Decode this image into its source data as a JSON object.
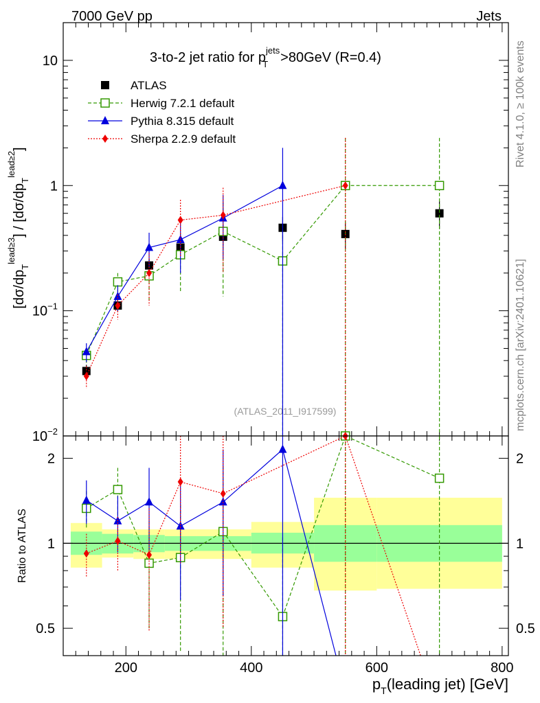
{
  "header": {
    "left": "7000 GeV pp",
    "right": "Jets"
  },
  "side_labels": {
    "rivet": "Rivet 4.1.0, ≥ 100k events",
    "mcplots": "mcplots.cern.ch [arXiv:2401.10621]"
  },
  "colors": {
    "atlas": "#000000",
    "herwig": "#339900",
    "pythia": "#0000dd",
    "sherpa": "#ee0000",
    "band_outer": "#ffff99",
    "band_inner": "#99ff99",
    "ref_label": "#999999"
  },
  "chart_data": [
    {
      "type": "scatter",
      "panel": "main",
      "title_text": "3-to-2 jet ratio for p",
      "title_sup": "jets",
      "title_sub": "T",
      "title_tail": ">80GeV (R=0.4)",
      "ylabel": "[dσ/dp_T^{lead≥3}] / [dσ/dp_T^{lead≥2}]",
      "yscale": "log",
      "ylim": [
        0.01,
        20
      ],
      "xlim": [
        100,
        810
      ],
      "y_ticks": [
        {
          "base": "10",
          "exp": "",
          "value": 10
        },
        {
          "base": "1",
          "exp": "",
          "value": 1
        },
        {
          "base": "10",
          "exp": "−1",
          "value": 0.1
        },
        {
          "base": "10",
          "exp": "−2",
          "value": 0.01
        }
      ],
      "ref_label": "(ATLAS_2011_I917599)",
      "legend_position": "top-left",
      "series": [
        {
          "name": "ATLAS",
          "marker": "square",
          "x": [
            137,
            187,
            237,
            287,
            355,
            450,
            550,
            700
          ],
          "y": [
            0.033,
            0.11,
            0.23,
            0.32,
            0.39,
            0.46,
            0.41,
            0.6
          ],
          "err": [
            0.004,
            0.012,
            0.03,
            0.04,
            0.06,
            0.1,
            0.1,
            0.15
          ]
        },
        {
          "name": "Herwig 7.2.1 default",
          "marker": "open-square",
          "x": [
            137,
            187,
            237,
            287,
            355,
            450,
            550,
            700
          ],
          "y": [
            0.044,
            0.17,
            0.19,
            0.28,
            0.43,
            0.25,
            1.0,
            1.0
          ],
          "err_lo": [
            0.006,
            0.03,
            0.07,
            0.14,
            0.3,
            0.24,
            0.99,
            0.99
          ],
          "err_hi": [
            0.006,
            0.03,
            0.07,
            0.14,
            0.3,
            0.24,
            1.4,
            1.4
          ]
        },
        {
          "name": "Pythia 8.315 default",
          "marker": "triangle",
          "x": [
            137,
            187,
            237,
            287,
            355,
            450
          ],
          "y": [
            0.047,
            0.13,
            0.32,
            0.37,
            0.55,
            1.0
          ],
          "err_lo": [
            0.008,
            0.03,
            0.1,
            0.17,
            0.29,
            0.999
          ],
          "err_hi": [
            0.008,
            0.03,
            0.1,
            0.17,
            0.29,
            1.0
          ]
        },
        {
          "name": "Sherpa 2.2.9 default",
          "marker": "diamond",
          "x": [
            137,
            187,
            237,
            287,
            355,
            550
          ],
          "y": [
            0.03,
            0.11,
            0.2,
            0.53,
            0.58,
            1.0
          ],
          "err_lo": [
            0.006,
            0.025,
            0.09,
            0.26,
            0.38,
            0.99
          ],
          "err_hi": [
            0.006,
            0.025,
            0.09,
            0.24,
            0.38,
            1.4
          ]
        }
      ]
    },
    {
      "type": "scatter",
      "panel": "ratio",
      "xlabel": "p_T(leading jet) [GeV]",
      "ylabel": "Ratio to ATLAS",
      "yscale": "log",
      "ylim": [
        0.4,
        2.4
      ],
      "xlim": [
        100,
        810
      ],
      "x_ticks": [
        "200",
        "400",
        "600",
        "800"
      ],
      "y_ticks": [
        "2",
        "1",
        "0.5"
      ],
      "bands": [
        {
          "x0": 112,
          "x1": 162,
          "inner_lo": 0.91,
          "inner_hi": 1.1,
          "outer_lo": 0.82,
          "outer_hi": 1.18
        },
        {
          "x0": 162,
          "x1": 212,
          "inner_lo": 0.92,
          "inner_hi": 1.08,
          "outer_lo": 0.89,
          "outer_hi": 1.12
        },
        {
          "x0": 212,
          "x1": 262,
          "inner_lo": 0.93,
          "inner_hi": 1.07,
          "outer_lo": 0.88,
          "outer_hi": 1.12
        },
        {
          "x0": 262,
          "x1": 312,
          "inner_lo": 0.94,
          "inner_hi": 1.06,
          "outer_lo": 0.88,
          "outer_hi": 1.12
        },
        {
          "x0": 312,
          "x1": 400,
          "inner_lo": 0.94,
          "inner_hi": 1.06,
          "outer_lo": 0.88,
          "outer_hi": 1.12
        },
        {
          "x0": 400,
          "x1": 500,
          "inner_lo": 0.92,
          "inner_hi": 1.09,
          "outer_lo": 0.82,
          "outer_hi": 1.19
        },
        {
          "x0": 500,
          "x1": 600,
          "inner_lo": 0.86,
          "inner_hi": 1.16,
          "outer_lo": 0.68,
          "outer_hi": 1.45
        },
        {
          "x0": 600,
          "x1": 800,
          "inner_lo": 0.86,
          "inner_hi": 1.16,
          "outer_lo": 0.69,
          "outer_hi": 1.45
        }
      ],
      "series": [
        {
          "name": "Herwig 7.2.1 default",
          "x": [
            137,
            187,
            237,
            287,
            355,
            450,
            550,
            700
          ],
          "y": [
            1.33,
            1.55,
            0.85,
            0.89,
            1.1,
            0.55,
            2.4,
            1.7
          ],
          "err_lo": [
            0.2,
            0.3,
            0.35,
            0.48,
            0.78,
            0.5,
            2.3,
            1.6
          ],
          "err_hi": [
            0.2,
            0.3,
            0.35,
            0.48,
            0.78,
            0.5,
            0.0,
            0.8
          ]
        },
        {
          "name": "Pythia 8.315 default",
          "x": [
            137,
            187,
            237,
            287,
            355,
            450,
            535
          ],
          "y": [
            1.42,
            1.2,
            1.4,
            1.15,
            1.4,
            2.15,
            0.4
          ],
          "err_lo": [
            0.25,
            0.27,
            0.45,
            0.52,
            0.75,
            2.0,
            0.0
          ],
          "err_hi": [
            0.25,
            0.27,
            0.45,
            0.52,
            0.75,
            0.3,
            0.0
          ]
        },
        {
          "name": "Sherpa 2.2.9 default",
          "x": [
            137,
            187,
            237,
            287,
            355,
            550,
            670
          ],
          "y": [
            0.92,
            1.02,
            0.91,
            1.65,
            1.5,
            2.4,
            0.4
          ],
          "err_lo": [
            0.16,
            0.22,
            0.42,
            0.8,
            1.0,
            2.3,
            0.0
          ],
          "err_hi": [
            0.16,
            0.22,
            0.42,
            0.75,
            1.0,
            0.0,
            0.0
          ]
        }
      ]
    }
  ]
}
